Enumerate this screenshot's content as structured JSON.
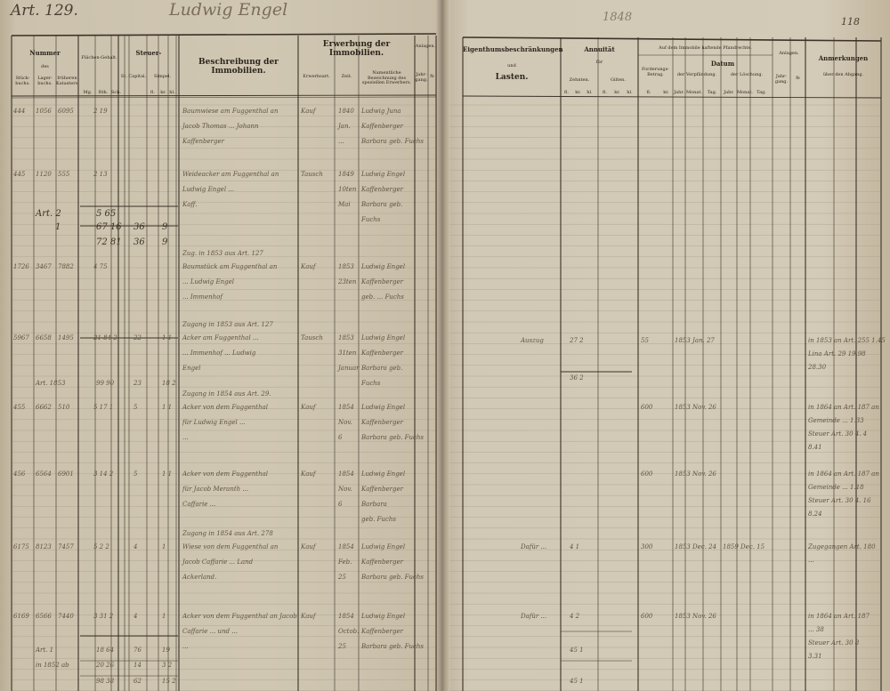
{
  "left_page": {
    "article": "Art. 129.",
    "owner_name": "Ludwig Engel",
    "headers": {
      "nummer": "Nummer",
      "des": "des",
      "stueckbuch": "Stück-buchs.",
      "lagerbuch": "Lager-buchs.",
      "frueheren_kataster": "früheren Katasters.",
      "flaechen_gehalt": "Flächen-Gehalt.",
      "flaeche_units": [
        "Mg.",
        "Rth.",
        "Sch."
      ],
      "steuer": "Steuer-",
      "st_capital": "St. Capital.",
      "simpel": "Simpel.",
      "simpel_units": [
        "fl.",
        "kr.",
        "hl."
      ],
      "beschreibung": "Beschreibung der Immobilien.",
      "erwerbung": "Erwerbung der Immobilien.",
      "erwerbsart": "Erwerbsart.",
      "zeit": "Zeit.",
      "erwerber": "Namentliche Bezeichnung des speziellen Erwerbers.",
      "anlagen": "Anlagen.",
      "jahrgang": "Jahr-gang.",
      "nr": "№"
    },
    "entries": [
      {
        "stueck": "444",
        "lager": "1056",
        "frueher": "6095",
        "flaeche": "2 19",
        "steuer": "",
        "simpel": "",
        "desc": [
          "Baumwiese am Fuggenthal an",
          "Jacob Thomas ... Johann",
          "Kaffenberger"
        ],
        "art": "Kauf",
        "zeit": [
          "1840",
          "Jan.",
          "..."
        ],
        "erwerber": [
          "Ludwig Juna",
          "Kaffenberger",
          "Barbara geb. Fuchs"
        ]
      },
      {
        "stueck": "445",
        "lager": "1120",
        "frueher": "555",
        "flaeche": "2 13",
        "steuer": "",
        "simpel": "",
        "desc": [
          "Weideacker am Fuggenthal an",
          "Ludwig Engel ...",
          "Kaff."
        ],
        "art": "Tausch",
        "zeit": [
          "1849",
          "10ten",
          "Mai"
        ],
        "erwerber": [
          "Ludwig Engel",
          "Kaffenberger",
          "Barbara geb.",
          "Fuchs"
        ]
      },
      {
        "stueck": "1726",
        "lager": "3467",
        "frueher": "7882",
        "flaeche": "4 75",
        "steuer": "",
        "simpel": "",
        "note": "Zug. in 1853 aus Art. 127",
        "desc": [
          "Baumstück am Fuggenthal an",
          "... Ludwig Engel",
          "... Immenhof"
        ],
        "art": "Kauf",
        "zeit": [
          "1853",
          "23ten",
          ""
        ],
        "erwerber": [
          "Ludwig Engel",
          "Kaffenberger",
          "geb. ... Fuchs"
        ]
      },
      {
        "stueck": "5967",
        "lager": "6658",
        "frueher": "1495",
        "flaeche": "21 84 2",
        "steuer": "22",
        "simpel": "1 1",
        "note": "Zugang in 1853 aus Art. 127",
        "desc": [
          "Acker am Fuggenthal ...",
          "... Immenhof ... Ludwig",
          "Engel"
        ],
        "art": "Tausch",
        "zeit": [
          "1853",
          "31ten",
          "Januar"
        ],
        "erwerber": [
          "Ludwig Engel",
          "Kaffenberger",
          "Barbara geb.",
          "Fuchs"
        ]
      },
      {
        "stueck": "455",
        "lager": "6662",
        "frueher": "510",
        "flaeche": "5 17 1",
        "steuer": "5",
        "simpel": "1 1",
        "note": "Zugang in 1854 aus Art. 29.",
        "desc": [
          "Acker von dem Fuggenthal",
          "für Ludwig Engel ...",
          "..."
        ],
        "art": "Kauf",
        "zeit": [
          "1854",
          "Nov.",
          "6"
        ],
        "erwerber": [
          "Ludwig Engel",
          "Kaffenberger",
          "Barbara geb. Fuchs"
        ]
      },
      {
        "stueck": "456",
        "lager": "6564",
        "frueher": "6901",
        "flaeche": "3 14 2",
        "steuer": "5",
        "simpel": "1 1",
        "desc": [
          "Acker von dem Fuggenthal",
          "für Jacob Meranth ... ",
          "Caffarie ..."
        ],
        "art": "Kauf",
        "zeit": [
          "1854",
          "Nov.",
          "6"
        ],
        "erwerber": [
          "Ludwig Engel",
          "Kaffenberger",
          "Barbara",
          "geb. Fuchs"
        ]
      },
      {
        "stueck": "6175",
        "lager": "8123",
        "frueher": "7457",
        "flaeche": "5 2 2",
        "steuer": "4",
        "simpel": "1",
        "note": "Zugang in 1854 aus Art. 278",
        "desc": [
          "Wiese von dem Fuggenthal an",
          "Jacob Caffarie ... Land",
          "Ackerland."
        ],
        "art": "Kauf",
        "zeit": [
          "1854",
          "Feb.",
          "25"
        ],
        "erwerber": [
          "Ludwig Engel",
          "Kaffenberger",
          "Barbara geb. Fuchs"
        ]
      },
      {
        "stueck": "6169",
        "lager": "6566",
        "frueher": "7440",
        "flaeche": "3 31 2",
        "steuer": "4",
        "simpel": "1",
        "desc": [
          "Acker von dem Fuggenthal an Jacob",
          "Caffarie ... und ...",
          "..."
        ],
        "art": "Kauf",
        "zeit": [
          "1854",
          "Octob.",
          "25"
        ],
        "erwerber": [
          "Ludwig Engel",
          "Kaffenberger",
          "Barbara geb. Fuchs"
        ]
      }
    ],
    "totals": [
      {
        "label": "Art. 2",
        "flaeche": "5 65",
        "steuer": "",
        "simpel": ""
      },
      {
        "label": "1",
        "flaeche": "67 16",
        "steuer": "36",
        "simpel": "9"
      },
      {
        "label": "",
        "flaeche": "72 81",
        "steuer": "36",
        "simpel": "9"
      },
      {
        "label": "Art. 1853",
        "flaeche": "99 90",
        "steuer": "23",
        "simpel": "18 2"
      },
      {
        "label": "Art. 1",
        "flaeche": "18 64",
        "steuer": "76",
        "simpel": "19"
      },
      {
        "label": "in 1852 ab",
        "flaeche": "20 26",
        "steuer": "14",
        "simpel": "3 2"
      },
      {
        "label": "",
        "flaeche": "98 38",
        "steuer": "62",
        "simpel": "15 2"
      }
    ]
  },
  "right_page": {
    "page_number": "118",
    "top_note": "1848",
    "headers": {
      "lasten_title": "Eigenthumsbeschränkungen",
      "und": "und",
      "lasten": "Lasten.",
      "annuitaet": "Annuität",
      "fuer": "für",
      "zehnten": "Zehnten.",
      "gilten": "Gilten.",
      "money_units": [
        "fl.",
        "kr.",
        "hl."
      ],
      "pfandrechte": "Auf dem Immobile haftende Pfandrechte.",
      "forderung": "Forderungs-Betrag.",
      "forderung_units": [
        "fl.",
        "kr."
      ],
      "datum": "Datum",
      "verpfaendung": "der Verpfändung.",
      "loeschung": "der Löschung.",
      "date_units": [
        "Jahr.",
        "Monat.",
        "Tag."
      ],
      "anlagen": "Anlagen.",
      "jahrgang": "Jahr-gang.",
      "nr": "№",
      "anmerkungen": "Anmerkungen",
      "abgang": "über den Abgang."
    },
    "entries": [
      {
        "lasten": "Auszug",
        "annuitaet": "27 2",
        "forderung": "55",
        "verpf": "1853 Jan. 27",
        "loesch": "",
        "anm": [
          "in 1853 an Art. 255  1.45",
          "Lina Art. 29  19.98",
          "28.30"
        ]
      },
      {
        "lasten": "",
        "annuitaet": "36 2",
        "forderung": "",
        "verpf": "",
        "loesch": "",
        "anm": []
      },
      {
        "lasten": "",
        "annuitaet": "",
        "forderung": "600",
        "verpf": "1853 Nov. 26",
        "loesch": "",
        "anm": [
          "in 1864 an Art. 187 an",
          "Gemeinde ... 1.33",
          "Steuer Art. 30  4. 4",
          "8.41"
        ]
      },
      {
        "lasten": "",
        "annuitaet": "",
        "forderung": "600",
        "verpf": "1853 Nov. 26",
        "loesch": "",
        "anm": [
          "in 1864 an Art. 187 an",
          "Gemeinde ... 1.18",
          "Steuer Art. 30  4. 16",
          "8.24"
        ]
      },
      {
        "lasten": "Dafür ...",
        "annuitaet": "4 1",
        "forderung": "300",
        "verpf": "1853 Dec. 24",
        "loesch": "1859 Dec. 15",
        "anm": [
          "Zugegangen Art. 180",
          "..."
        ]
      },
      {
        "lasten": "Dafür ...",
        "annuitaet": "4 2",
        "forderung": "600",
        "verpf": "1853 Nov. 26",
        "loesch": "",
        "anm": [
          "in 1864 an Art. 187",
          "... 38",
          "Steuer Art. 30  8",
          "3.31"
        ]
      },
      {
        "lasten": "",
        "annuitaet": "45 1",
        "forderung": "",
        "verpf": "",
        "loesch": "",
        "anm": []
      },
      {
        "lasten": "",
        "annuitaet": "45 1",
        "forderung": "",
        "verpf": "",
        "loesch": "",
        "anm": []
      }
    ]
  },
  "colors": {
    "paper": "#d0c7b3",
    "ink": "#2d261d",
    "handwriting": "#5e5240",
    "rule": "#3a3227"
  }
}
